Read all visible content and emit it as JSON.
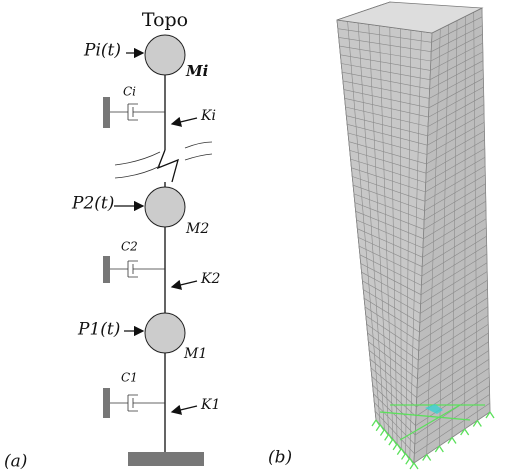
{
  "diagram_a": {
    "top_label": "Topo",
    "floors": [
      {
        "force": "Pi(t)",
        "mass": "Mi",
        "damper": "Ci",
        "spring": "Ki"
      },
      {
        "force": "P2(t)",
        "mass": "M2",
        "damper": "C2",
        "spring": "K2"
      },
      {
        "force": "P1(t)",
        "mass": "M1",
        "damper": "C1",
        "spring": "K1"
      }
    ],
    "caption": "(a)"
  },
  "diagram_b": {
    "caption": "(b)"
  }
}
